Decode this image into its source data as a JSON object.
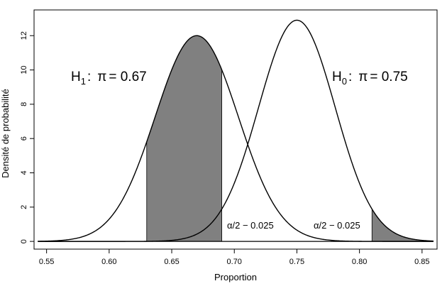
{
  "chart_data": {
    "type": "line",
    "xlabel": "Proportion",
    "ylabel": "Densité de probabilité",
    "xlim": [
      0.54,
      0.862
    ],
    "ylim": [
      -0.45,
      13.5
    ],
    "xticks": [
      0.55,
      0.6,
      0.65,
      0.7,
      0.75,
      0.8,
      0.85
    ],
    "xtick_labels": [
      "0.55",
      "0.60",
      "0.65",
      "0.70",
      "0.75",
      "0.80",
      "0.85"
    ],
    "yticks": [
      0,
      2,
      4,
      6,
      8,
      10,
      12
    ],
    "ytick_labels": [
      "0",
      "2",
      "4",
      "6",
      "8",
      "10",
      "12"
    ],
    "grid": false,
    "series": [
      {
        "name": "H1",
        "mean": 0.67,
        "sd": 0.0332,
        "peak": 12.0
      },
      {
        "name": "H0",
        "mean": 0.75,
        "sd": 0.0306,
        "peak": 12.9
      }
    ],
    "shaded_regions": [
      {
        "series": "H1",
        "x_from": 0.63,
        "x_to": 0.69,
        "fill": "#808080"
      },
      {
        "series": "H0",
        "x_from": 0.81,
        "x_to": 0.87,
        "fill": "#808080"
      }
    ],
    "annotations": {
      "h1": {
        "main": "H",
        "sub": "1",
        "colon": ":",
        "symbol": "π",
        "eq": "= 0.67"
      },
      "h0": {
        "main": "H",
        "sub": "0",
        "colon": ":",
        "symbol": "π",
        "eq": "= 0.75"
      },
      "alpha_left": "α/2 − 0.025",
      "alpha_right": "α/2 − 0.025"
    }
  }
}
